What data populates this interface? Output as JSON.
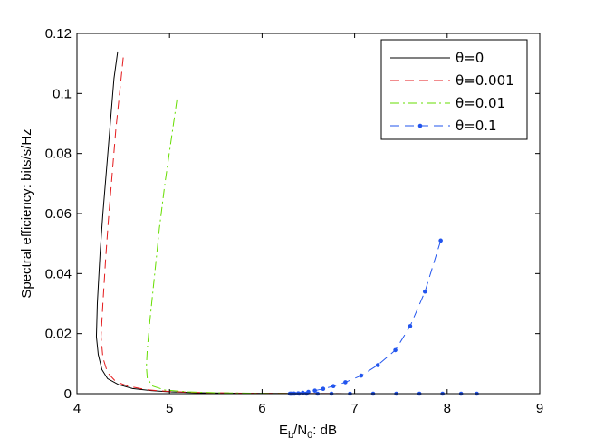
{
  "chart_data": {
    "type": "line",
    "ylabel": "Spectral efficiency: bits/s/Hz",
    "xlabel_parts": {
      "e": "E",
      "b": "b",
      "slash_n": "/N",
      "zero": "0",
      "unit": ": dB"
    },
    "xlim": [
      4,
      9
    ],
    "ylim": [
      0,
      0.12
    ],
    "xticks": [
      4,
      5,
      6,
      7,
      8,
      9
    ],
    "xtick_labels": [
      "4",
      "5",
      "6",
      "7",
      "8",
      "9"
    ],
    "yticks": [
      0,
      0.02,
      0.04,
      0.06,
      0.08,
      0.1,
      0.12
    ],
    "ytick_labels": [
      "0",
      "0.02",
      "0.04",
      "0.06",
      "0.08",
      "0.1",
      "0.12"
    ],
    "grid": false,
    "legend_position": "top-right",
    "series": [
      {
        "name": "θ=0",
        "color": "#000000",
        "dash": "solid",
        "marker": "none",
        "points": [
          [
            4.44,
            0.114
          ],
          [
            4.4,
            0.105
          ],
          [
            4.36,
            0.09
          ],
          [
            4.32,
            0.075
          ],
          [
            4.28,
            0.06
          ],
          [
            4.25,
            0.047
          ],
          [
            4.22,
            0.03
          ],
          [
            4.21,
            0.019
          ],
          [
            4.23,
            0.013
          ],
          [
            4.27,
            0.008
          ],
          [
            4.33,
            0.005
          ],
          [
            4.45,
            0.003
          ],
          [
            4.6,
            0.0017
          ],
          [
            4.8,
            0.001
          ],
          [
            5.0,
            0.0006
          ],
          [
            5.3,
            0.0003
          ],
          [
            5.8,
            0.0001
          ],
          [
            6.5,
            3e-05
          ],
          [
            7.5,
            0.0
          ],
          [
            8.0,
            0.0
          ]
        ]
      },
      {
        "name": "θ=0.001",
        "color": "#e41a1c",
        "dash": "10,6",
        "marker": "none",
        "points": [
          [
            4.5,
            0.112
          ],
          [
            4.46,
            0.1
          ],
          [
            4.42,
            0.088
          ],
          [
            4.38,
            0.073
          ],
          [
            4.34,
            0.058
          ],
          [
            4.31,
            0.045
          ],
          [
            4.28,
            0.03
          ],
          [
            4.26,
            0.019
          ],
          [
            4.28,
            0.012
          ],
          [
            4.33,
            0.007
          ],
          [
            4.42,
            0.004
          ],
          [
            4.55,
            0.0025
          ],
          [
            4.75,
            0.0013
          ],
          [
            5.0,
            0.0007
          ],
          [
            5.3,
            0.0004
          ],
          [
            5.8,
            0.00015
          ],
          [
            6.5,
            5e-05
          ],
          [
            7.0,
            0.0
          ]
        ]
      },
      {
        "name": "θ=0.01",
        "color": "#66dd00",
        "dash": "10,4,2,4",
        "marker": "none",
        "points": [
          [
            5.08,
            0.098
          ],
          [
            5.02,
            0.085
          ],
          [
            4.95,
            0.07
          ],
          [
            4.89,
            0.055
          ],
          [
            4.84,
            0.04
          ],
          [
            4.79,
            0.025
          ],
          [
            4.76,
            0.015
          ],
          [
            4.75,
            0.009
          ],
          [
            4.76,
            0.005
          ],
          [
            4.82,
            0.0025
          ],
          [
            4.95,
            0.0012
          ],
          [
            5.2,
            0.0006
          ],
          [
            5.5,
            0.0003
          ],
          [
            6.0,
            0.0001
          ],
          [
            6.5,
            0.0
          ]
        ]
      },
      {
        "name": "θ=0.1",
        "color": "#2255ee",
        "dash": "10,6",
        "marker": "dot",
        "points": [
          [
            7.93,
            0.051
          ],
          [
            7.76,
            0.034
          ],
          [
            7.6,
            0.0225
          ],
          [
            7.44,
            0.0145
          ],
          [
            7.25,
            0.0095
          ],
          [
            7.07,
            0.006
          ],
          [
            6.9,
            0.0038
          ],
          [
            6.77,
            0.0025
          ],
          [
            6.66,
            0.0016
          ],
          [
            6.57,
            0.001
          ],
          [
            6.5,
            0.0006
          ],
          [
            6.44,
            0.0003
          ],
          [
            6.39,
            0.0001
          ],
          [
            6.34,
            4e-05
          ],
          [
            6.31,
            0.0
          ],
          [
            6.3,
            0.0
          ],
          [
            6.32,
            0.0
          ],
          [
            6.35,
            0.0
          ],
          [
            6.4,
            0.0
          ],
          [
            6.48,
            0.0
          ],
          [
            6.6,
            0.0
          ],
          [
            6.75,
            0.0
          ],
          [
            6.95,
            0.0
          ],
          [
            7.2,
            0.0
          ],
          [
            7.45,
            0.0
          ],
          [
            7.7,
            0.0
          ],
          [
            7.95,
            0.0
          ],
          [
            8.15,
            0.0
          ],
          [
            8.32,
            0.0
          ]
        ]
      }
    ]
  }
}
